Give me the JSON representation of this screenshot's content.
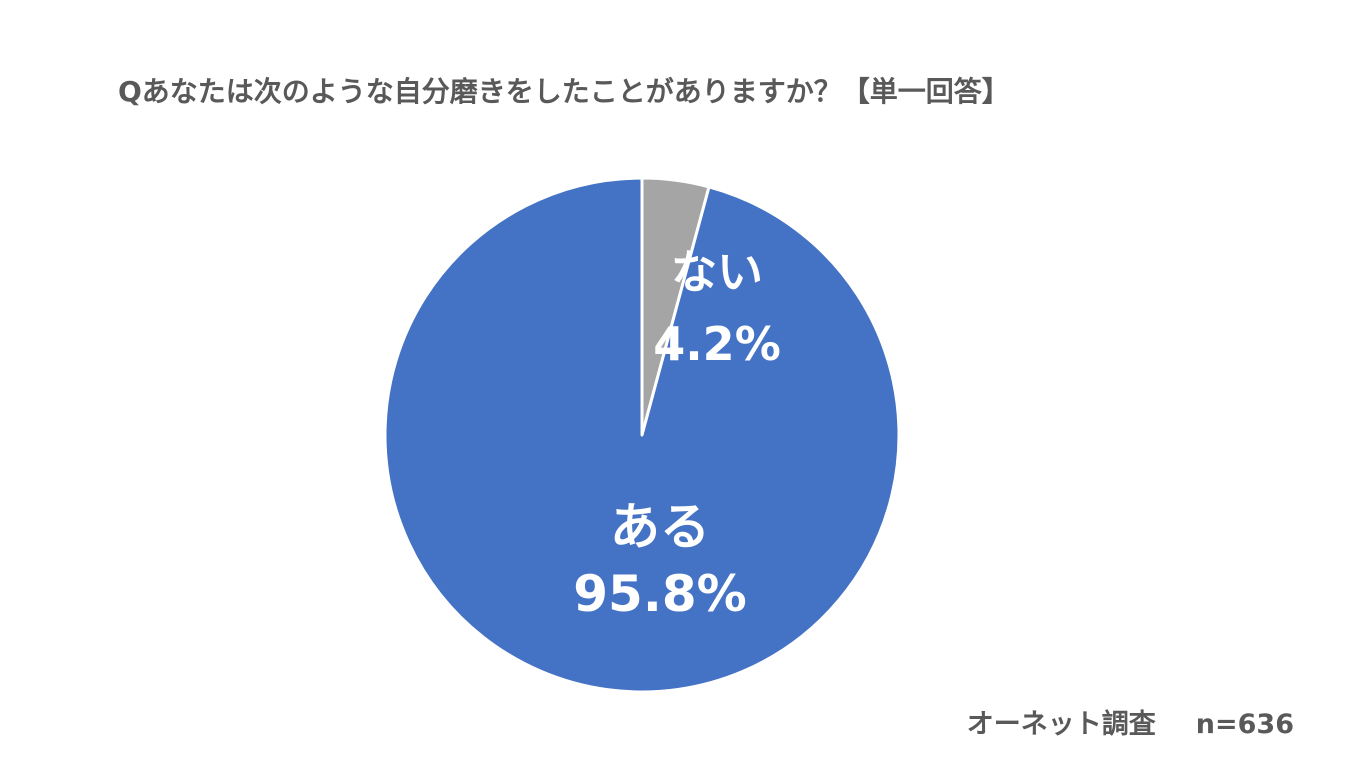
{
  "title": "Qあなたは次のような自分磨きをしたことがありますか？【単一回答】",
  "footer": {
    "source": "オーネット調査",
    "sample": "n=636"
  },
  "colors": {
    "yes": "#4472C4",
    "no": "#A5A5A5",
    "border": "#ffffff",
    "text": "#595959"
  },
  "chart_data": {
    "type": "pie",
    "title": "Qあなたは次のような自分磨きをしたことがありますか？【単一回答】",
    "start": "12 o'clock, clockwise",
    "slices": [
      {
        "label": "ない",
        "value": 4.2,
        "value_label": "4.2%",
        "color": "#A5A5A5"
      },
      {
        "label": "ある",
        "value": 95.8,
        "value_label": "95.8%",
        "color": "#4472C4"
      }
    ]
  }
}
